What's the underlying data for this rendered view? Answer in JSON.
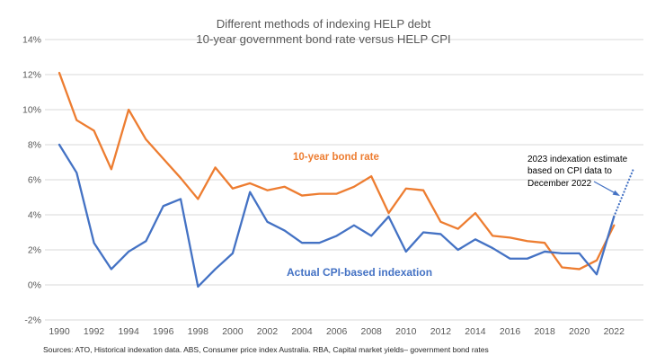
{
  "chart": {
    "title_line1": "Different methods of indexing HELP debt",
    "title_line2": "10-year government bond rate versus HELP CPI",
    "series_labels": {
      "bond": "10-year bond rate",
      "cpi": "Actual CPI-based indexation"
    },
    "annotation": "2023 indexation estimate\n based on CPI data to\nDecember 2022",
    "sources": "Sources: ATO, Historical indexation data. ABS, Consumer price index Australia. RBA, Capital market yields– government bond rates",
    "colors": {
      "bond_line": "#ED7D31",
      "cpi_line": "#4472C4",
      "gridline": "#D9D9D9",
      "tick_label": "#595959",
      "title": "#595959",
      "annotation_arrow": "#4472C4"
    }
  },
  "chart_data": {
    "type": "line",
    "title": "Different methods of indexing HELP debt",
    "subtitle": "10-year government bond rate versus HELP CPI",
    "xlabel": "",
    "ylabel": "",
    "x": [
      1990,
      1991,
      1992,
      1993,
      1994,
      1995,
      1996,
      1997,
      1998,
      1999,
      2000,
      2001,
      2002,
      2003,
      2004,
      2005,
      2006,
      2007,
      2008,
      2009,
      2010,
      2011,
      2012,
      2013,
      2014,
      2015,
      2016,
      2017,
      2018,
      2019,
      2020,
      2021,
      2022
    ],
    "series": [
      {
        "name": "10-year bond rate",
        "color": "#ED7D31",
        "values": [
          12.1,
          9.4,
          8.8,
          6.6,
          10.0,
          8.3,
          7.2,
          6.1,
          4.9,
          6.7,
          5.5,
          5.8,
          5.4,
          5.6,
          5.1,
          5.2,
          5.2,
          5.6,
          6.2,
          4.1,
          5.5,
          5.4,
          3.6,
          3.2,
          4.1,
          2.8,
          2.7,
          2.5,
          2.4,
          1.0,
          0.9,
          1.4,
          3.4
        ]
      },
      {
        "name": "Actual CPI-based indexation",
        "color": "#4472C4",
        "values": [
          8.0,
          6.4,
          2.4,
          0.9,
          1.9,
          2.5,
          4.5,
          4.9,
          -0.1,
          0.9,
          1.8,
          5.3,
          3.6,
          3.1,
          2.4,
          2.4,
          2.8,
          3.4,
          2.8,
          3.9,
          1.9,
          3.0,
          2.9,
          2.0,
          2.6,
          2.1,
          1.5,
          1.5,
          1.9,
          1.8,
          1.8,
          0.6,
          3.9
        ]
      }
    ],
    "projection": {
      "name": "2023 indexation estimate based on CPI data to December 2022",
      "style": "dotted",
      "color": "#4472C4",
      "x": [
        2022,
        2023
      ],
      "values": [
        3.9,
        6.7
      ]
    },
    "ylim": [
      -2,
      14
    ],
    "yticks": [
      {
        "value": 14,
        "label": "14%"
      },
      {
        "value": 12,
        "label": "12%"
      },
      {
        "value": 10,
        "label": "10%"
      },
      {
        "value": 8,
        "label": "8%"
      },
      {
        "value": 6,
        "label": "6%"
      },
      {
        "value": 4,
        "label": "4%"
      },
      {
        "value": 2,
        "label": "2%"
      },
      {
        "value": 0,
        "label": "0%"
      },
      {
        "value": -2,
        "label": "-2%"
      }
    ],
    "xticks": [
      1990,
      1992,
      1994,
      1996,
      1998,
      2000,
      2002,
      2004,
      2006,
      2008,
      2010,
      2012,
      2014,
      2016,
      2018,
      2020,
      2022
    ],
    "grid": "horizontal",
    "legend": "inline-text-labels"
  }
}
